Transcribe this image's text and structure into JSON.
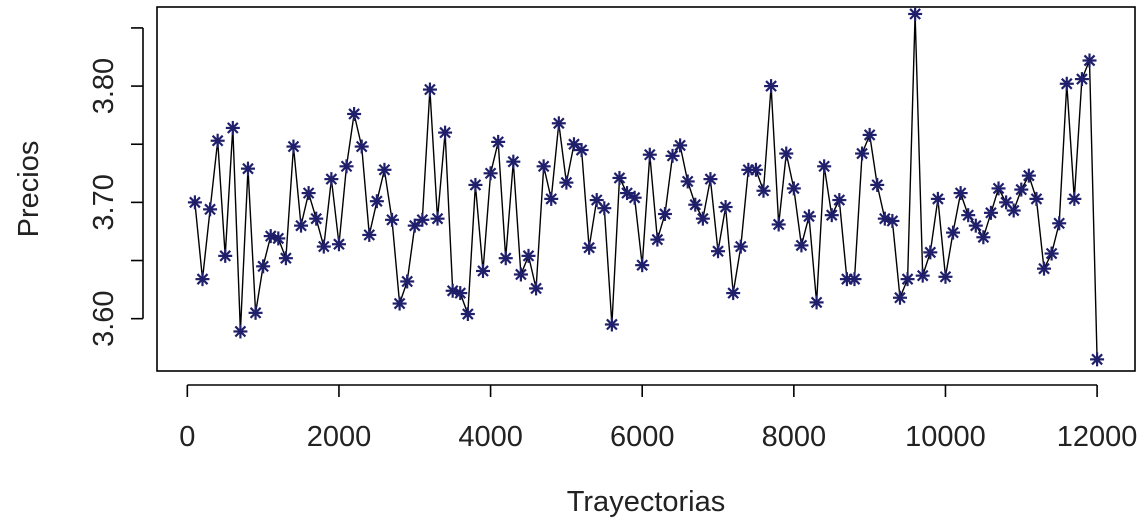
{
  "chart_data": {
    "type": "line",
    "title": "",
    "xlabel": "Trayectorias",
    "ylabel": "Precios",
    "xlim": [
      -400,
      12500
    ],
    "ylim": [
      3.555,
      3.868
    ],
    "xticks": [
      0,
      2000,
      4000,
      6000,
      8000,
      10000,
      12000
    ],
    "xtick_labels": [
      "0",
      "2000",
      "4000",
      "6000",
      "8000",
      "10000",
      "12000"
    ],
    "yticks": [
      3.6,
      3.7,
      3.8
    ],
    "ytick_labels": [
      "3.60",
      "3.70",
      "3.80"
    ],
    "grid": false,
    "legend": "none",
    "marker": "asterisk",
    "colors": {
      "marker": "#1f1f6b",
      "line": "#000000"
    },
    "series": [
      {
        "x": [
          100,
          200,
          300,
          400,
          500,
          600,
          700,
          800,
          900,
          1000,
          1100,
          1200,
          1300,
          1400,
          1500,
          1600,
          1700,
          1800,
          1900,
          2000,
          2100,
          2200,
          2300,
          2400,
          2500,
          2600,
          2700,
          2800,
          2900,
          3000,
          3100,
          3200,
          3300,
          3400,
          3500,
          3600,
          3700,
          3800,
          3900,
          4000,
          4100,
          4200,
          4300,
          4400,
          4500,
          4600,
          4700,
          4800,
          4900,
          5000,
          5100,
          5200,
          5300,
          5400,
          5500,
          5600,
          5700,
          5800,
          5900,
          6000,
          6100,
          6200,
          6300,
          6400,
          6500,
          6600,
          6700,
          6800,
          6900,
          7000,
          7100,
          7200,
          7300,
          7400,
          7500,
          7600,
          7700,
          7800,
          7900,
          8000,
          8100,
          8200,
          8300,
          8400,
          8500,
          8600,
          8700,
          8800,
          8900,
          9000,
          9100,
          9200,
          9300,
          9400,
          9500,
          9600,
          9700,
          9800,
          9900,
          10000,
          10100,
          10200,
          10300,
          10400,
          10500,
          10600,
          10700,
          10800,
          10900,
          11000,
          11100,
          11200,
          11300,
          11400,
          11500,
          11600,
          11700,
          11800,
          11900,
          12000
        ],
        "values": [
          3.7,
          3.634,
          3.694,
          3.753,
          3.654,
          3.764,
          3.589,
          3.729,
          3.605,
          3.645,
          3.671,
          3.669,
          3.652,
          3.748,
          3.68,
          3.708,
          3.686,
          3.662,
          3.72,
          3.664,
          3.731,
          3.776,
          3.748,
          3.672,
          3.701,
          3.728,
          3.685,
          3.613,
          3.632,
          3.68,
          3.685,
          3.797,
          3.686,
          3.76,
          3.624,
          3.622,
          3.604,
          3.715,
          3.641,
          3.725,
          3.752,
          3.652,
          3.735,
          3.638,
          3.654,
          3.626,
          3.731,
          3.703,
          3.768,
          3.717,
          3.75,
          3.745,
          3.661,
          3.702,
          3.695,
          3.595,
          3.721,
          3.708,
          3.704,
          3.646,
          3.741,
          3.668,
          3.69,
          3.74,
          3.749,
          3.718,
          3.698,
          3.686,
          3.72,
          3.658,
          3.696,
          3.622,
          3.662,
          3.728,
          3.728,
          3.71,
          3.8,
          3.681,
          3.742,
          3.712,
          3.663,
          3.688,
          3.614,
          3.731,
          3.689,
          3.702,
          3.634,
          3.634,
          3.742,
          3.758,
          3.715,
          3.686,
          3.684,
          3.618,
          3.634,
          3.862,
          3.637,
          3.657,
          3.703,
          3.636,
          3.674,
          3.708,
          3.689,
          3.68,
          3.67,
          3.691,
          3.712,
          3.7,
          3.693,
          3.711,
          3.723,
          3.703,
          3.643,
          3.656,
          3.682,
          3.802,
          3.703,
          3.806,
          3.822,
          3.565
        ]
      }
    ]
  }
}
